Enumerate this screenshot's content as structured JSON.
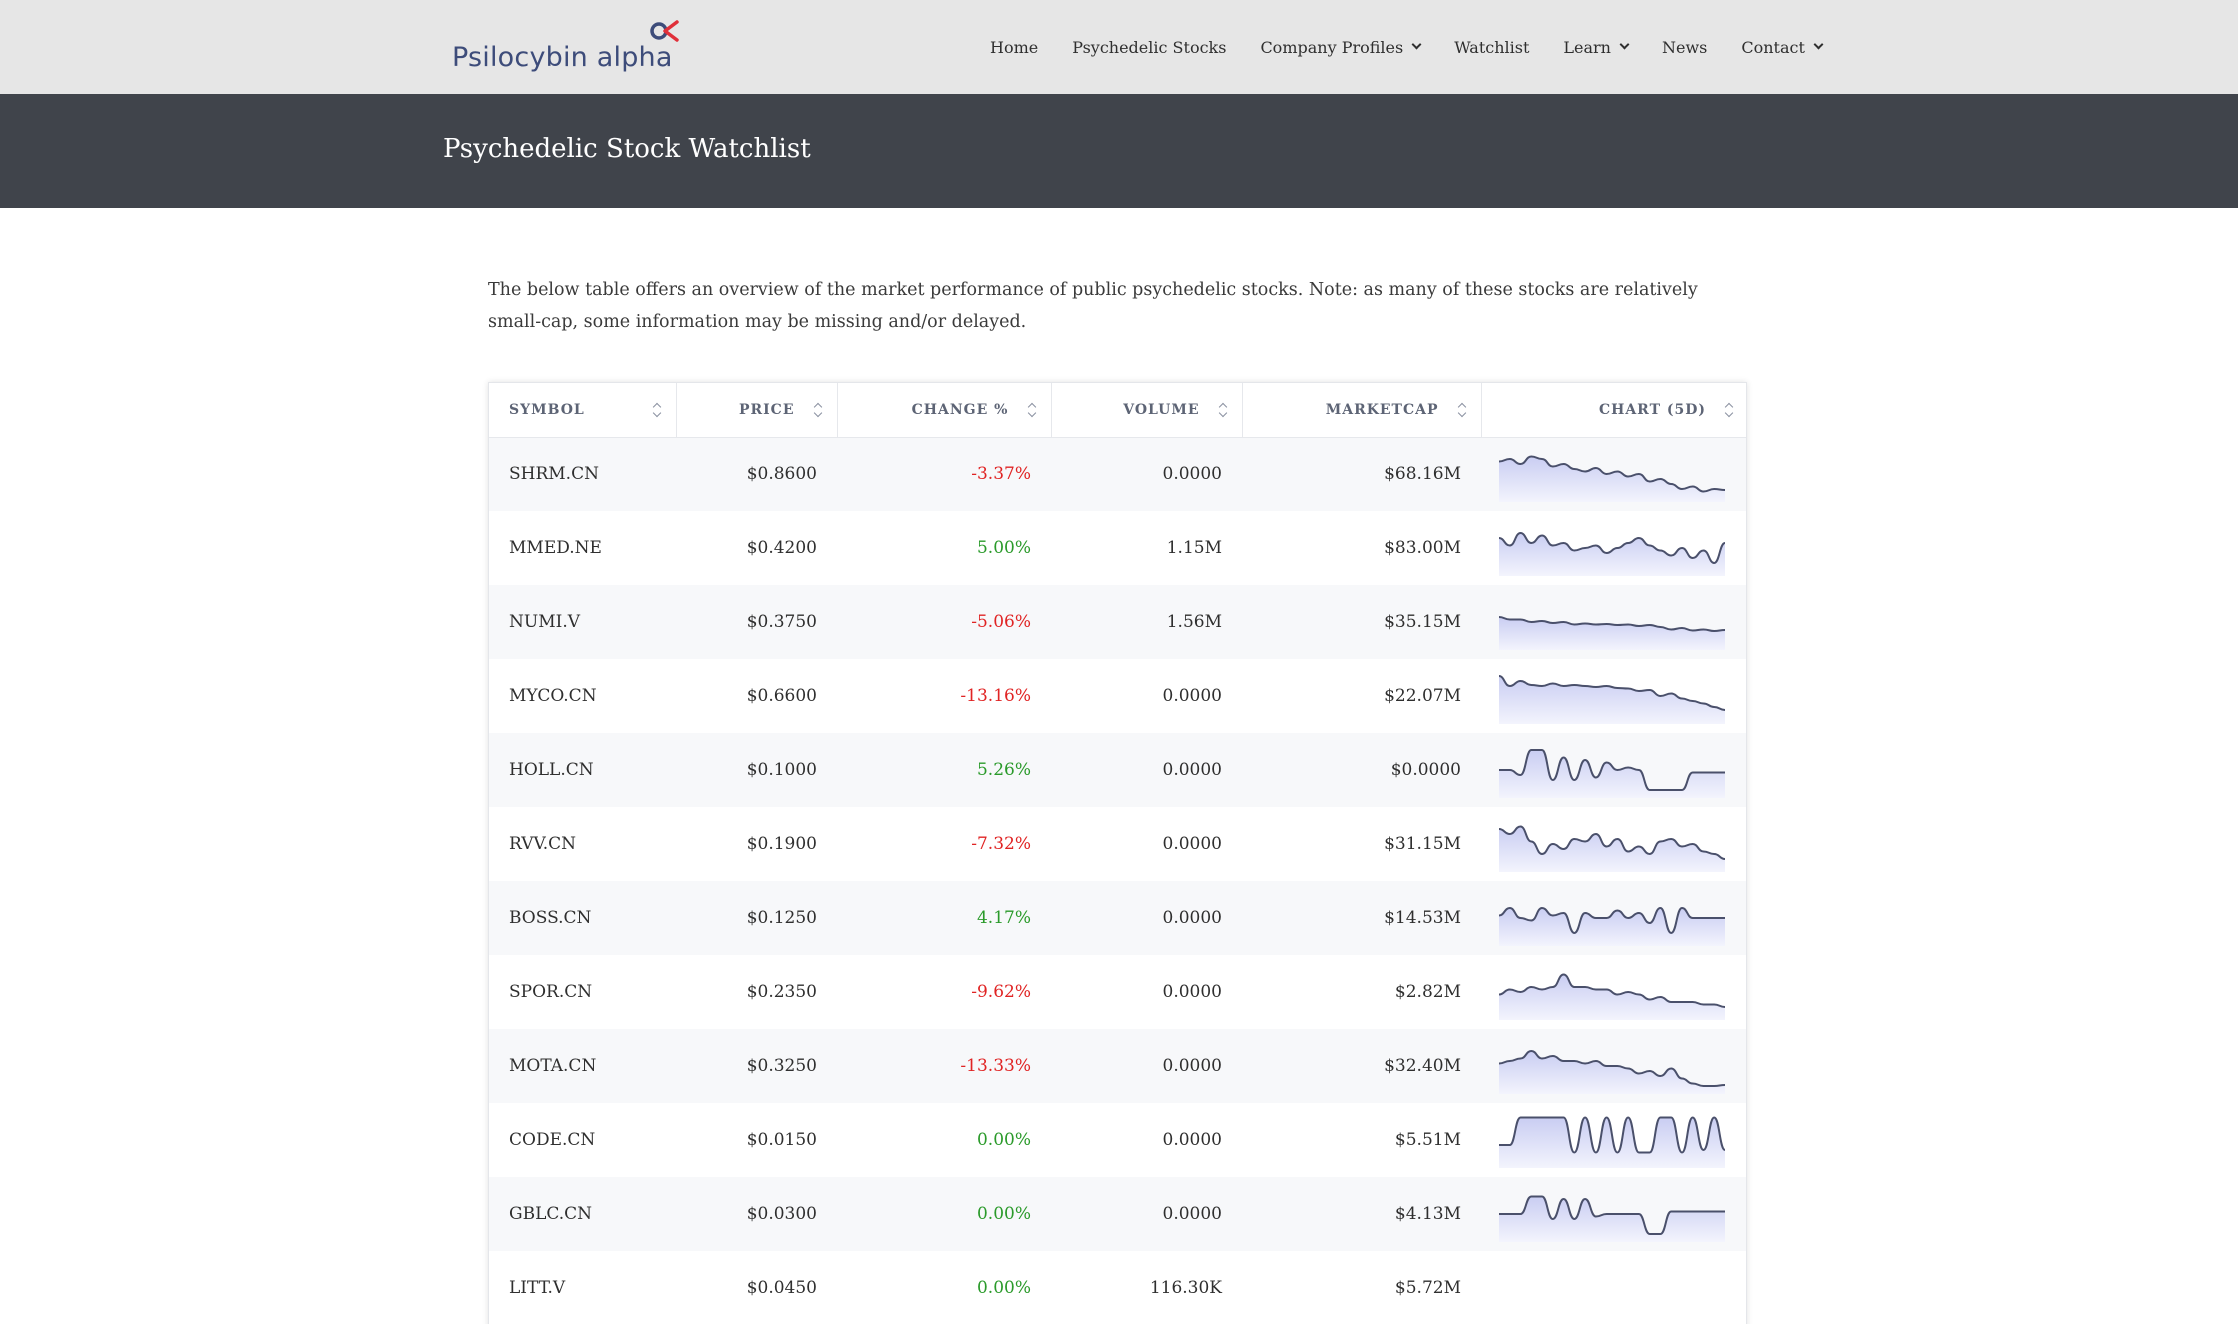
{
  "header": {
    "logo_text": "Psilocybin alpha",
    "logo_mark_icon": "alpha-logo-icon",
    "nav": [
      {
        "label": "Home",
        "dropdown": false
      },
      {
        "label": "Psychedelic Stocks",
        "dropdown": false
      },
      {
        "label": "Company Profiles",
        "dropdown": true
      },
      {
        "label": "Watchlist",
        "dropdown": false
      },
      {
        "label": "Learn",
        "dropdown": true
      },
      {
        "label": "News",
        "dropdown": false
      },
      {
        "label": "Contact",
        "dropdown": true
      }
    ]
  },
  "banner": {
    "title": "Psychedelic Stock Watchlist"
  },
  "intro": "The below table offers an overview of the market performance of public psychedelic stocks. Note: as many of these stocks are relatively small-cap, some information may be missing and/or delayed.",
  "table": {
    "columns": [
      "SYMBOL",
      "PRICE",
      "CHANGE %",
      "VOLUME",
      "MARKETCAP",
      "CHART (5D)"
    ],
    "rows": [
      {
        "symbol": "SHRM.CN",
        "price": "$0.8600",
        "change": "-3.37%",
        "dir": "neg",
        "volume": "0.0000",
        "marketcap": "$68.16M",
        "spark": [
          0.75,
          0.8,
          0.7,
          0.85,
          0.8,
          0.65,
          0.7,
          0.6,
          0.55,
          0.62,
          0.5,
          0.55,
          0.45,
          0.5,
          0.35,
          0.4,
          0.3,
          0.2,
          0.25,
          0.15,
          0.2,
          0.18
        ]
      },
      {
        "symbol": "MMED.NE",
        "price": "$0.4200",
        "change": "5.00%",
        "dir": "pos",
        "volume": "1.15M",
        "marketcap": "$83.00M",
        "spark": [
          0.7,
          0.55,
          0.8,
          0.6,
          0.75,
          0.55,
          0.6,
          0.45,
          0.5,
          0.55,
          0.4,
          0.5,
          0.6,
          0.7,
          0.55,
          0.45,
          0.35,
          0.5,
          0.3,
          0.45,
          0.2,
          0.6
        ]
      },
      {
        "symbol": "NUMI.V",
        "price": "$0.3750",
        "change": "-5.06%",
        "dir": "neg",
        "volume": "1.56M",
        "marketcap": "$35.15M",
        "spark": [
          0.6,
          0.55,
          0.55,
          0.5,
          0.52,
          0.48,
          0.5,
          0.45,
          0.47,
          0.45,
          0.46,
          0.44,
          0.45,
          0.42,
          0.44,
          0.4,
          0.35,
          0.38,
          0.33,
          0.35,
          0.32,
          0.34
        ]
      },
      {
        "symbol": "MYCO.CN",
        "price": "$0.6600",
        "change": "-13.16%",
        "dir": "neg",
        "volume": "0.0000",
        "marketcap": "$22.07M",
        "spark": [
          0.9,
          0.7,
          0.8,
          0.72,
          0.7,
          0.75,
          0.7,
          0.72,
          0.7,
          0.68,
          0.7,
          0.66,
          0.65,
          0.6,
          0.62,
          0.5,
          0.55,
          0.45,
          0.4,
          0.35,
          0.28,
          0.22
        ]
      },
      {
        "symbol": "HOLL.CN",
        "price": "$0.1000",
        "change": "5.26%",
        "dir": "pos",
        "volume": "0.0000",
        "marketcap": "$0.0000",
        "spark": [
          0.5,
          0.5,
          0.4,
          0.9,
          0.9,
          0.3,
          0.75,
          0.3,
          0.7,
          0.35,
          0.65,
          0.5,
          0.55,
          0.5,
          0.1,
          0.1,
          0.1,
          0.1,
          0.45,
          0.45,
          0.45,
          0.45
        ]
      },
      {
        "symbol": "RVV.CN",
        "price": "$0.1900",
        "change": "-7.32%",
        "dir": "neg",
        "volume": "0.0000",
        "marketcap": "$31.15M",
        "spark": [
          0.8,
          0.7,
          0.85,
          0.55,
          0.3,
          0.5,
          0.4,
          0.6,
          0.55,
          0.7,
          0.45,
          0.6,
          0.35,
          0.45,
          0.3,
          0.55,
          0.6,
          0.45,
          0.5,
          0.35,
          0.3,
          0.2
        ]
      },
      {
        "symbol": "BOSS.CN",
        "price": "$0.1250",
        "change": "4.17%",
        "dir": "pos",
        "volume": "0.0000",
        "marketcap": "$14.53M",
        "spark": [
          0.55,
          0.7,
          0.5,
          0.45,
          0.7,
          0.55,
          0.6,
          0.2,
          0.6,
          0.5,
          0.5,
          0.65,
          0.5,
          0.6,
          0.4,
          0.7,
          0.2,
          0.7,
          0.5,
          0.5,
          0.5,
          0.5
        ]
      },
      {
        "symbol": "SPOR.CN",
        "price": "$0.2350",
        "change": "-9.62%",
        "dir": "neg",
        "volume": "0.0000",
        "marketcap": "$2.82M",
        "spark": [
          0.45,
          0.55,
          0.5,
          0.6,
          0.55,
          0.6,
          0.85,
          0.6,
          0.6,
          0.55,
          0.55,
          0.45,
          0.5,
          0.45,
          0.35,
          0.4,
          0.3,
          0.3,
          0.3,
          0.25,
          0.25,
          0.2
        ]
      },
      {
        "symbol": "MOTA.CN",
        "price": "$0.3250",
        "change": "-13.33%",
        "dir": "neg",
        "volume": "0.0000",
        "marketcap": "$32.40M",
        "spark": [
          0.55,
          0.6,
          0.65,
          0.8,
          0.65,
          0.7,
          0.6,
          0.6,
          0.55,
          0.6,
          0.5,
          0.5,
          0.45,
          0.35,
          0.4,
          0.3,
          0.45,
          0.25,
          0.15,
          0.1,
          0.1,
          0.12
        ]
      },
      {
        "symbol": "CODE.CN",
        "price": "$0.0150",
        "change": "0.00%",
        "dir": "pos",
        "volume": "0.0000",
        "marketcap": "$5.51M",
        "spark": [
          0.4,
          0.4,
          0.95,
          0.95,
          0.95,
          0.95,
          0.95,
          0.25,
          0.95,
          0.25,
          0.95,
          0.25,
          0.95,
          0.25,
          0.25,
          0.95,
          0.95,
          0.25,
          0.95,
          0.3,
          0.95,
          0.3
        ]
      },
      {
        "symbol": "GBLC.CN",
        "price": "$0.0300",
        "change": "0.00%",
        "dir": "pos",
        "volume": "0.0000",
        "marketcap": "$4.13M",
        "spark": [
          0.5,
          0.5,
          0.5,
          0.85,
          0.85,
          0.4,
          0.8,
          0.4,
          0.8,
          0.45,
          0.5,
          0.5,
          0.5,
          0.5,
          0.1,
          0.1,
          0.55,
          0.55,
          0.55,
          0.55,
          0.55,
          0.55
        ]
      },
      {
        "symbol": "LITT.V",
        "price": "$0.0450",
        "change": "0.00%",
        "dir": "pos",
        "volume": "116.30K",
        "marketcap": "$5.72M",
        "spark": []
      }
    ]
  },
  "colors": {
    "line": "#4a506b",
    "fill_top": "#c9cdf2",
    "fill_bottom": "#f3f4fd",
    "negative": "#e02424",
    "positive": "#2a9a2a"
  }
}
